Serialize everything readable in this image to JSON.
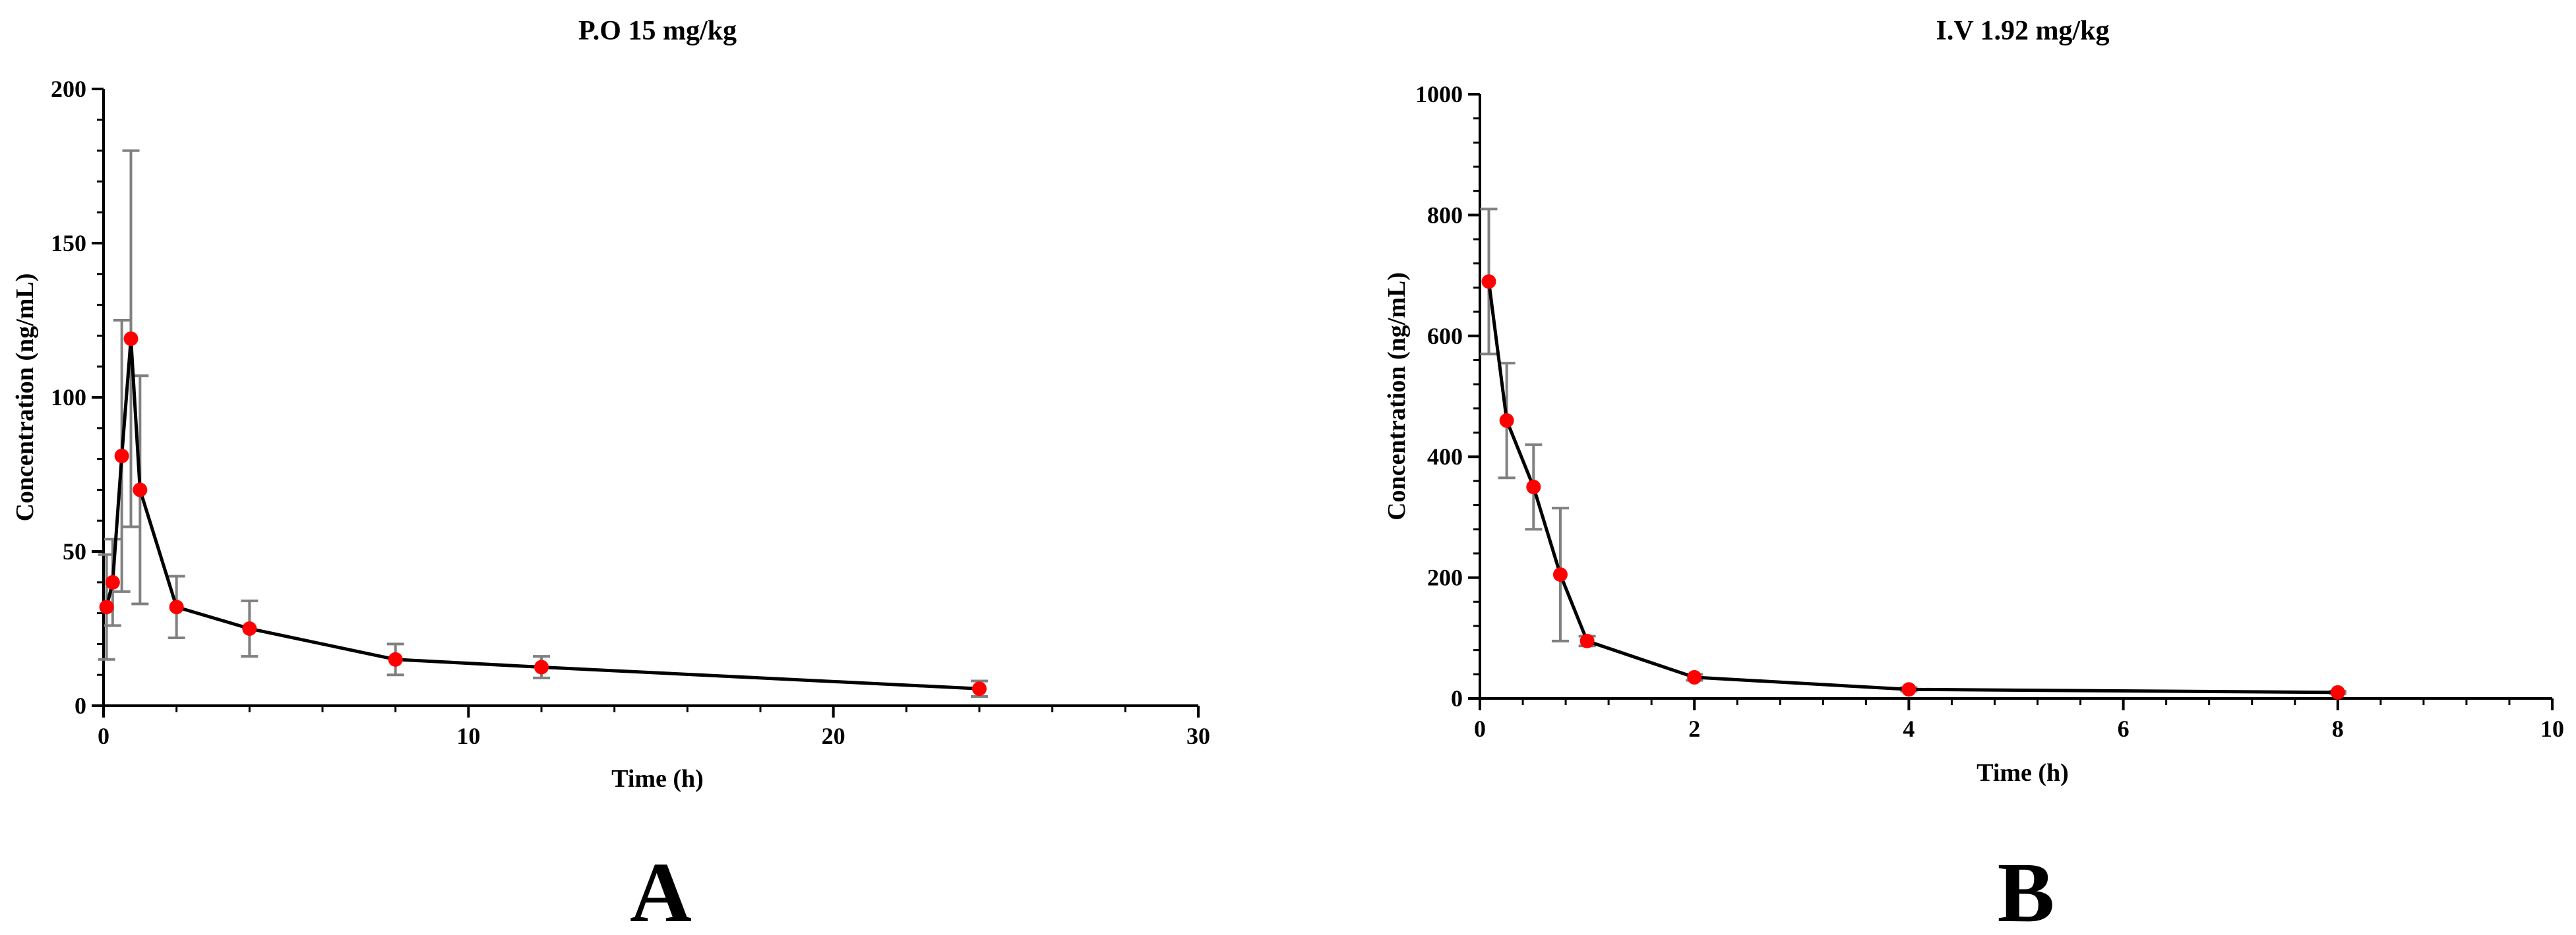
{
  "chart_data": [
    {
      "type": "line",
      "panel_label": "A",
      "title": "P.O 15 mg/kg",
      "xlabel": "Time (h)",
      "ylabel": "Concentration (ng/mL)",
      "xlim": [
        0,
        30
      ],
      "ylim": [
        0,
        200
      ],
      "xticks": [
        0,
        10,
        20,
        30
      ],
      "yticks": [
        0,
        50,
        100,
        150,
        200
      ],
      "grid": false,
      "marker_color": "#ff0000",
      "line_color": "#000000",
      "errorbar_color": "#808080",
      "series": [
        {
          "x": [
            0.083,
            0.25,
            0.5,
            0.75,
            1,
            2,
            4,
            8,
            12,
            24
          ],
          "y": [
            32,
            40,
            81,
            119,
            70,
            32,
            25,
            15,
            12.5,
            5.5
          ],
          "error": [
            17,
            14,
            44,
            61,
            37,
            10,
            9,
            5,
            3.5,
            2.5
          ]
        }
      ]
    },
    {
      "type": "line",
      "panel_label": "B",
      "title": "I.V 1.92 mg/kg",
      "xlabel": "Time (h)",
      "ylabel": "Concentration (ng/mL)",
      "xlim": [
        0,
        10
      ],
      "ylim": [
        0,
        1000
      ],
      "xticks": [
        0,
        2,
        4,
        6,
        8,
        10
      ],
      "yticks": [
        0,
        200,
        400,
        600,
        800,
        1000
      ],
      "grid": false,
      "marker_color": "#ff0000",
      "line_color": "#000000",
      "errorbar_color": "#808080",
      "series": [
        {
          "x": [
            0.083,
            0.25,
            0.5,
            0.75,
            1,
            2,
            4,
            8
          ],
          "y": [
            690,
            460,
            350,
            205,
            95,
            35,
            15,
            10
          ],
          "error": [
            120,
            95,
            70,
            110,
            8,
            5,
            3,
            2
          ]
        }
      ]
    }
  ]
}
